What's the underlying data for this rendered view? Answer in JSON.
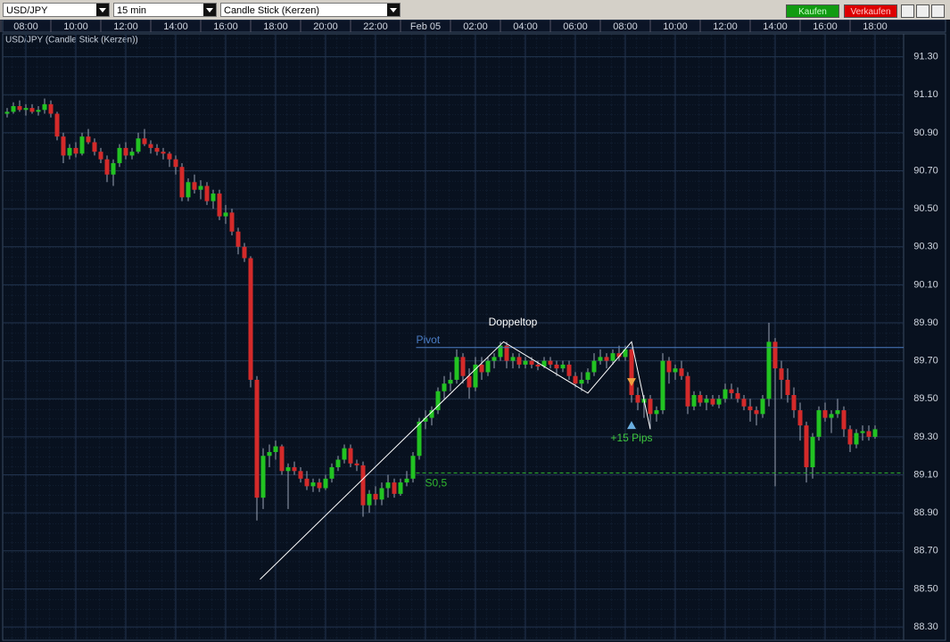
{
  "toolbar": {
    "symbol": "USD/JPY",
    "interval": "15 min",
    "chart_type": "Candle Stick (Kerzen)",
    "buy": "Kaufen",
    "sell": "Verkaufen"
  },
  "chart_data": {
    "type": "candlestick",
    "subtitle": "USD/JPY (Candle Stick (Kerzen))",
    "up_color": "#22c322",
    "down_color": "#d42a2a",
    "wick_color": "#9aa4b4",
    "grid": true,
    "ylim": [
      88.23,
      91.42
    ],
    "yticks": [
      {
        "value": 88.3,
        "label": "88.30"
      },
      {
        "value": 88.5,
        "label": "88.50"
      },
      {
        "value": 88.7,
        "label": "88.70"
      },
      {
        "value": 88.9,
        "label": "88.90"
      },
      {
        "value": 89.1,
        "label": "89.10"
      },
      {
        "value": 89.3,
        "label": "89.30"
      },
      {
        "value": 89.5,
        "label": "89.50"
      },
      {
        "value": 89.7,
        "label": "89.70"
      },
      {
        "value": 89.9,
        "label": "89.90"
      },
      {
        "value": 90.1,
        "label": "90.10"
      },
      {
        "value": 90.3,
        "label": "90.30"
      },
      {
        "value": 90.5,
        "label": "90.50"
      },
      {
        "value": 90.7,
        "label": "90.70"
      },
      {
        "value": 90.9,
        "label": "90.90"
      },
      {
        "value": 91.1,
        "label": "91.10"
      },
      {
        "value": 91.3,
        "label": "91.30"
      }
    ],
    "categories": [
      null,
      null,
      null,
      "08:00",
      null,
      null,
      null,
      null,
      null,
      null,
      null,
      "10:00",
      null,
      null,
      null,
      null,
      null,
      null,
      null,
      "12:00",
      null,
      null,
      null,
      null,
      null,
      null,
      null,
      "14:00",
      null,
      null,
      null,
      null,
      null,
      null,
      null,
      "16:00",
      null,
      null,
      null,
      null,
      null,
      null,
      null,
      "18:00",
      null,
      null,
      null,
      null,
      null,
      null,
      null,
      "20:00",
      null,
      null,
      null,
      null,
      null,
      null,
      null,
      "22:00",
      null,
      null,
      null,
      null,
      null,
      null,
      null,
      "Feb 05",
      null,
      null,
      null,
      null,
      null,
      null,
      null,
      "02:00",
      null,
      null,
      null,
      null,
      null,
      null,
      null,
      "04:00",
      null,
      null,
      null,
      null,
      null,
      null,
      null,
      "06:00",
      null,
      null,
      null,
      null,
      null,
      null,
      null,
      "08:00",
      null,
      null,
      null,
      null,
      null,
      null,
      null,
      "10:00",
      null,
      null,
      null,
      null,
      null,
      null,
      null,
      "12:00",
      null,
      null,
      null,
      null,
      null,
      null,
      null,
      "14:00",
      null,
      null,
      null,
      null,
      null,
      null,
      null,
      "16:00",
      null,
      null,
      null,
      null,
      null,
      null,
      null,
      "18:00"
    ],
    "candles": [
      [
        91.0,
        91.03,
        90.98,
        91.01
      ],
      [
        91.01,
        91.06,
        91.0,
        91.04
      ],
      [
        91.04,
        91.07,
        91.01,
        91.02
      ],
      [
        91.02,
        91.05,
        90.99,
        91.03
      ],
      [
        91.03,
        91.05,
        91.0,
        91.01
      ],
      [
        91.01,
        91.04,
        90.99,
        91.02
      ],
      [
        91.02,
        91.08,
        91.0,
        91.05
      ],
      [
        91.05,
        91.07,
        90.98,
        91.0
      ],
      [
        91.0,
        91.01,
        90.86,
        90.88
      ],
      [
        90.88,
        90.9,
        90.74,
        90.78
      ],
      [
        90.78,
        90.84,
        90.76,
        90.82
      ],
      [
        90.82,
        90.85,
        90.77,
        90.79
      ],
      [
        90.79,
        90.9,
        90.78,
        90.88
      ],
      [
        90.88,
        90.92,
        90.84,
        90.85
      ],
      [
        90.85,
        90.87,
        90.78,
        90.8
      ],
      [
        90.8,
        90.82,
        90.74,
        90.76
      ],
      [
        90.76,
        90.78,
        90.64,
        90.68
      ],
      [
        90.68,
        90.76,
        90.62,
        90.74
      ],
      [
        90.74,
        90.84,
        90.72,
        90.82
      ],
      [
        90.82,
        90.85,
        90.76,
        90.78
      ],
      [
        90.78,
        90.82,
        90.76,
        90.8
      ],
      [
        90.8,
        90.9,
        90.79,
        90.87
      ],
      [
        90.87,
        90.92,
        90.83,
        90.84
      ],
      [
        90.84,
        90.86,
        90.79,
        90.82
      ],
      [
        90.82,
        90.84,
        90.78,
        90.8
      ],
      [
        90.8,
        90.82,
        90.76,
        90.79
      ],
      [
        90.79,
        90.8,
        90.72,
        90.76
      ],
      [
        90.76,
        90.78,
        90.68,
        90.72
      ],
      [
        90.72,
        90.74,
        90.54,
        90.56
      ],
      [
        90.56,
        90.66,
        90.54,
        90.64
      ],
      [
        90.64,
        90.68,
        90.58,
        90.6
      ],
      [
        90.6,
        90.65,
        90.55,
        90.62
      ],
      [
        90.62,
        90.64,
        90.52,
        90.54
      ],
      [
        90.54,
        90.6,
        90.5,
        90.58
      ],
      [
        90.58,
        90.6,
        90.44,
        90.46
      ],
      [
        90.46,
        90.52,
        90.42,
        90.48
      ],
      [
        90.48,
        90.5,
        90.36,
        90.38
      ],
      [
        90.38,
        90.4,
        90.26,
        90.3
      ],
      [
        90.3,
        90.32,
        90.22,
        90.24
      ],
      [
        90.24,
        90.25,
        89.56,
        89.6
      ],
      [
        89.6,
        89.62,
        88.86,
        88.98
      ],
      [
        88.98,
        89.24,
        88.92,
        89.2
      ],
      [
        89.2,
        89.26,
        89.14,
        89.22
      ],
      [
        89.22,
        89.28,
        89.18,
        89.25
      ],
      [
        89.25,
        89.26,
        89.1,
        89.12
      ],
      [
        89.12,
        89.16,
        88.92,
        89.14
      ],
      [
        89.14,
        89.17,
        89.1,
        89.12
      ],
      [
        89.12,
        89.14,
        89.06,
        89.08
      ],
      [
        89.08,
        89.12,
        89.02,
        89.04
      ],
      [
        89.04,
        89.08,
        89.01,
        89.06
      ],
      [
        89.06,
        89.08,
        89.01,
        89.03
      ],
      [
        89.03,
        89.1,
        89.02,
        89.08
      ],
      [
        89.08,
        89.16,
        89.06,
        89.14
      ],
      [
        89.14,
        89.2,
        89.12,
        89.18
      ],
      [
        89.18,
        89.26,
        89.16,
        89.24
      ],
      [
        89.24,
        89.26,
        89.14,
        89.16
      ],
      [
        89.16,
        89.18,
        89.12,
        89.15
      ],
      [
        89.15,
        89.17,
        88.88,
        88.94
      ],
      [
        88.94,
        89.02,
        88.9,
        89.0
      ],
      [
        89.0,
        89.04,
        88.94,
        88.97
      ],
      [
        88.97,
        89.06,
        88.94,
        89.03
      ],
      [
        89.03,
        89.1,
        88.98,
        89.06
      ],
      [
        89.06,
        89.08,
        88.98,
        89.0
      ],
      [
        89.0,
        89.08,
        88.99,
        89.06
      ],
      [
        89.06,
        89.12,
        89.04,
        89.08
      ],
      [
        89.08,
        89.22,
        89.06,
        89.2
      ],
      [
        89.2,
        89.4,
        89.18,
        89.38
      ],
      [
        89.38,
        89.44,
        89.34,
        89.4
      ],
      [
        89.4,
        89.46,
        89.36,
        89.44
      ],
      [
        89.44,
        89.56,
        89.42,
        89.54
      ],
      [
        89.54,
        89.62,
        89.5,
        89.58
      ],
      [
        89.58,
        89.64,
        89.54,
        89.6
      ],
      [
        89.6,
        89.76,
        89.58,
        89.72
      ],
      [
        89.72,
        89.74,
        89.58,
        89.62
      ],
      [
        89.62,
        89.66,
        89.5,
        89.56
      ],
      [
        89.56,
        89.72,
        89.54,
        89.68
      ],
      [
        89.68,
        89.72,
        89.6,
        89.64
      ],
      [
        89.64,
        89.72,
        89.62,
        89.7
      ],
      [
        89.7,
        89.74,
        89.66,
        89.72
      ],
      [
        89.72,
        89.8,
        89.7,
        89.78
      ],
      [
        89.78,
        89.8,
        89.66,
        89.7
      ],
      [
        89.7,
        89.74,
        89.66,
        89.72
      ],
      [
        89.72,
        89.74,
        89.66,
        89.68
      ],
      [
        89.68,
        89.72,
        89.66,
        89.7
      ],
      [
        89.7,
        89.72,
        89.66,
        89.68
      ],
      [
        89.68,
        89.7,
        89.65,
        89.67
      ],
      [
        89.67,
        89.72,
        89.66,
        89.7
      ],
      [
        89.7,
        89.72,
        89.66,
        89.68
      ],
      [
        89.68,
        89.7,
        89.62,
        89.66
      ],
      [
        89.66,
        89.7,
        89.64,
        89.68
      ],
      [
        89.68,
        89.7,
        89.6,
        89.62
      ],
      [
        89.62,
        89.64,
        89.56,
        89.58
      ],
      [
        89.58,
        89.64,
        89.54,
        89.6
      ],
      [
        89.6,
        89.66,
        89.58,
        89.64
      ],
      [
        89.64,
        89.74,
        89.62,
        89.7
      ],
      [
        89.7,
        89.76,
        89.68,
        89.72
      ],
      [
        89.72,
        89.74,
        89.66,
        89.7
      ],
      [
        89.7,
        89.76,
        89.68,
        89.74
      ],
      [
        89.74,
        89.78,
        89.7,
        89.72
      ],
      [
        89.72,
        89.78,
        89.7,
        89.76
      ],
      [
        89.76,
        89.77,
        89.48,
        89.52
      ],
      [
        89.52,
        89.56,
        89.44,
        89.48
      ],
      [
        89.48,
        89.52,
        89.4,
        89.5
      ],
      [
        89.5,
        89.52,
        89.34,
        89.42
      ],
      [
        89.42,
        89.46,
        89.38,
        89.44
      ],
      [
        89.44,
        89.74,
        89.42,
        89.7
      ],
      [
        89.7,
        89.72,
        89.58,
        89.64
      ],
      [
        89.64,
        89.68,
        89.6,
        89.66
      ],
      [
        89.66,
        89.7,
        89.6,
        89.62
      ],
      [
        89.62,
        89.64,
        89.42,
        89.46
      ],
      [
        89.46,
        89.54,
        89.44,
        89.52
      ],
      [
        89.52,
        89.54,
        89.46,
        89.48
      ],
      [
        89.48,
        89.52,
        89.44,
        89.5
      ],
      [
        89.5,
        89.52,
        89.46,
        89.47
      ],
      [
        89.47,
        89.52,
        89.45,
        89.5
      ],
      [
        89.5,
        89.58,
        89.48,
        89.55
      ],
      [
        89.55,
        89.58,
        89.5,
        89.53
      ],
      [
        89.53,
        89.56,
        89.48,
        89.5
      ],
      [
        89.5,
        89.52,
        89.44,
        89.46
      ],
      [
        89.46,
        89.5,
        89.38,
        89.44
      ],
      [
        89.44,
        89.46,
        89.36,
        89.42
      ],
      [
        89.42,
        89.52,
        89.4,
        89.5
      ],
      [
        89.5,
        89.9,
        89.46,
        89.8
      ],
      [
        89.8,
        89.82,
        89.04,
        89.66
      ],
      [
        89.66,
        89.7,
        89.5,
        89.6
      ],
      [
        89.6,
        89.66,
        89.48,
        89.52
      ],
      [
        89.52,
        89.56,
        89.4,
        89.44
      ],
      [
        89.44,
        89.48,
        89.28,
        89.36
      ],
      [
        89.36,
        89.38,
        89.06,
        89.14
      ],
      [
        89.14,
        89.32,
        89.08,
        89.3
      ],
      [
        89.3,
        89.46,
        89.28,
        89.44
      ],
      [
        89.44,
        89.48,
        89.38,
        89.4
      ],
      [
        89.4,
        89.44,
        89.32,
        89.42
      ],
      [
        89.42,
        89.5,
        89.4,
        89.44
      ],
      [
        89.44,
        89.46,
        89.3,
        89.34
      ],
      [
        89.34,
        89.36,
        89.22,
        89.26
      ],
      [
        89.26,
        89.34,
        89.24,
        89.32
      ],
      [
        89.32,
        89.36,
        89.28,
        89.33
      ],
      [
        89.33,
        89.36,
        89.28,
        89.3
      ],
      [
        89.3,
        89.36,
        89.29,
        89.34
      ]
    ],
    "levels": [
      {
        "label": "Pivot",
        "value": 89.77,
        "from": 65.5,
        "color": "#4a7cc4",
        "dashed": false
      },
      {
        "label": "S0,5",
        "value": 89.11,
        "from": 65.5,
        "color": "#2fb82f",
        "dashed": true
      }
    ],
    "pattern": {
      "color": "#ffffff",
      "x": [
        40.5,
        79.5,
        93,
        100,
        103
      ],
      "y": [
        88.55,
        89.8,
        89.53,
        89.8,
        89.34
      ]
    },
    "annotations": [
      {
        "text": "Doppeltop",
        "x": 81,
        "y": 89.9,
        "color": "#ffffff"
      },
      {
        "text": "+15 Pips",
        "x": 100,
        "y": 89.29,
        "color": "#3ec83e"
      }
    ],
    "markers": [
      {
        "shape": "down",
        "x": 100,
        "y": 89.59,
        "color": "#f0a040"
      },
      {
        "shape": "up",
        "x": 100,
        "y": 89.36,
        "color": "#6aaee0"
      }
    ]
  }
}
